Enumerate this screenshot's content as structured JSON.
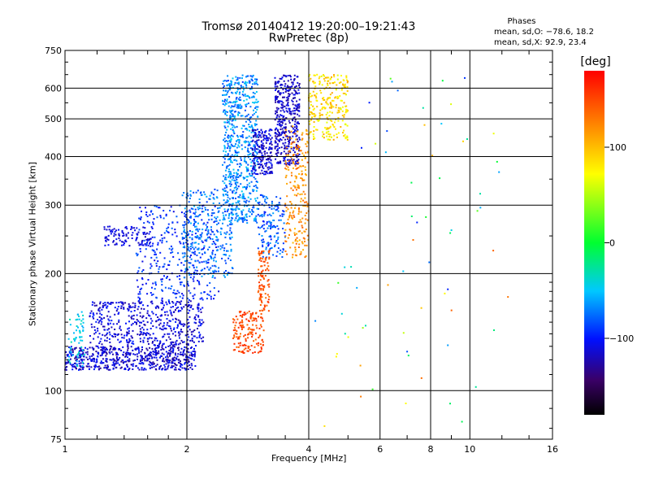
{
  "title": "Tromsø 20140412 19:20:00–19:21:43",
  "subtitle": "RwPretec (8p)",
  "stats": {
    "header": "Phases",
    "o_line": "mean, sd,O: −78.6, 18.2",
    "x_line": "mean, sd,X:  92.9, 23.4"
  },
  "colorbar": {
    "label": "[deg]",
    "range": [
      -180,
      180
    ],
    "tick_values": [
      100,
      0,
      -100
    ],
    "tick_labels": [
      "100",
      "0",
      "−100"
    ]
  },
  "chart_data": {
    "type": "scatter",
    "xlabel": "Frequency [MHz]",
    "ylabel": "Stationary phase Virtual Height [km]",
    "xscale": "log",
    "yscale": "log",
    "xlim": [
      1,
      16
    ],
    "ylim": [
      75,
      750
    ],
    "xticks": [
      1,
      2,
      4,
      6,
      8,
      10,
      16
    ],
    "xtick_labels": [
      "1",
      "2",
      "4",
      "6",
      "8",
      "10",
      "16"
    ],
    "yticks": [
      75,
      100,
      200,
      300,
      400,
      500,
      600,
      750
    ],
    "ytick_labels": [
      "75",
      "100",
      "200",
      "300",
      "400",
      "500",
      "600",
      "750"
    ],
    "grid": true,
    "points_note_unit": "x in MHz, y in km, phase in degrees",
    "clusters": [
      {
        "x_range": [
          1.0,
          2.1
        ],
        "y_range": [
          113,
          130
        ],
        "phase_range": [
          -130,
          -95
        ],
        "count": 600
      },
      {
        "x_range": [
          1.02,
          1.12
        ],
        "y_range": [
          115,
          160
        ],
        "phase_range": [
          -60,
          -30
        ],
        "count": 60
      },
      {
        "x_range": [
          1.15,
          2.2
        ],
        "y_range": [
          130,
          170
        ],
        "phase_range": [
          -125,
          -95
        ],
        "count": 500
      },
      {
        "x_range": [
          1.5,
          2.4
        ],
        "y_range": [
          170,
          300
        ],
        "phase_range": [
          -110,
          -75
        ],
        "count": 350
      },
      {
        "x_range": [
          1.25,
          1.65
        ],
        "y_range": [
          235,
          265
        ],
        "phase_range": [
          -120,
          -100
        ],
        "count": 110
      },
      {
        "x_range": [
          1.95,
          2.6
        ],
        "y_range": [
          195,
          330
        ],
        "phase_range": [
          -90,
          -55
        ],
        "count": 300
      },
      {
        "x_range": [
          2.45,
          3.0
        ],
        "y_range": [
          270,
          650
        ],
        "phase_range": [
          -90,
          -45
        ],
        "count": 700
      },
      {
        "x_range": [
          2.9,
          3.25
        ],
        "y_range": [
          360,
          470
        ],
        "phase_range": [
          -130,
          -95
        ],
        "count": 200
      },
      {
        "x_range": [
          3.3,
          3.8
        ],
        "y_range": [
          380,
          650
        ],
        "phase_range": [
          -130,
          -100
        ],
        "count": 400
      },
      {
        "x_range": [
          3.0,
          3.5
        ],
        "y_range": [
          220,
          320
        ],
        "phase_range": [
          -100,
          -60
        ],
        "count": 150
      },
      {
        "x_range": [
          2.6,
          3.1
        ],
        "y_range": [
          125,
          160
        ],
        "phase_range": [
          130,
          165
        ],
        "count": 160
      },
      {
        "x_range": [
          3.0,
          3.2
        ],
        "y_range": [
          160,
          230
        ],
        "phase_range": [
          130,
          160
        ],
        "count": 100
      },
      {
        "x_range": [
          3.5,
          4.0
        ],
        "y_range": [
          220,
          480
        ],
        "phase_range": [
          100,
          140
        ],
        "count": 220
      },
      {
        "x_range": [
          4.0,
          5.0
        ],
        "y_range": [
          440,
          650
        ],
        "phase_range": [
          60,
          110
        ],
        "count": 260
      },
      {
        "x_range": [
          4.0,
          13.0
        ],
        "y_range": [
          80,
          650
        ],
        "phase_range": [
          -110,
          140
        ],
        "count": 70
      }
    ]
  }
}
